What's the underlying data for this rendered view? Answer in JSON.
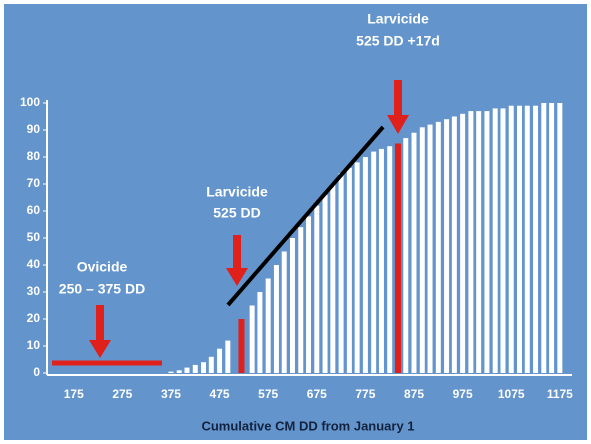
{
  "chart_data": {
    "type": "bar",
    "xlabel": "Cumulative CM DD from January 1",
    "xlim": [
      120,
      1200
    ],
    "ylim": [
      0,
      100
    ],
    "xticks": [
      175,
      275,
      375,
      475,
      575,
      675,
      775,
      875,
      975,
      1075,
      1175
    ],
    "yticks": [
      0,
      10,
      20,
      30,
      40,
      50,
      60,
      70,
      80,
      90,
      100
    ],
    "series": [
      {
        "color": "#ffffff",
        "x": [
          375,
          392,
          408,
          425,
          442,
          458,
          475,
          492,
          542,
          558,
          575,
          592,
          608,
          625,
          642,
          658,
          675,
          692,
          708,
          725,
          742,
          758,
          775,
          792,
          808,
          825,
          858,
          875,
          892,
          908,
          925,
          942,
          958,
          975,
          992,
          1008,
          1025,
          1042,
          1058,
          1075,
          1092,
          1108,
          1125,
          1142,
          1158,
          1175
        ],
        "values": [
          0.5,
          1,
          2,
          3,
          4,
          6,
          9,
          12,
          25,
          30,
          35,
          40,
          45,
          50,
          54,
          58,
          62,
          66,
          70,
          74,
          76,
          78,
          80,
          82,
          83,
          84,
          87,
          89,
          91,
          92,
          93,
          94,
          95,
          96,
          97,
          97,
          97,
          98,
          98,
          99,
          99,
          99,
          99,
          100,
          100,
          100
        ]
      },
      {
        "color": "#e0201b",
        "x": [
          520,
          842
        ],
        "values": [
          20,
          85
        ]
      }
    ],
    "annotations": [
      {
        "lines": [
          "Ovicide",
          "250 – 375 DD"
        ]
      },
      {
        "lines": [
          "Larvicide",
          "525 DD"
        ]
      },
      {
        "lines": [
          "Larvicide",
          "525 DD +17d"
        ]
      }
    ]
  }
}
